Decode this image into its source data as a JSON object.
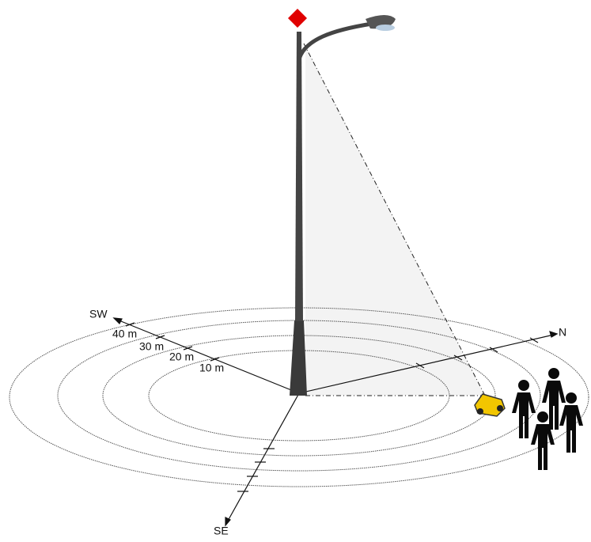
{
  "axes": {
    "sw": "SW",
    "n": "N",
    "se": "SE"
  },
  "distance_labels": [
    "10 m",
    "20 m",
    "30 m",
    "40 m"
  ]
}
